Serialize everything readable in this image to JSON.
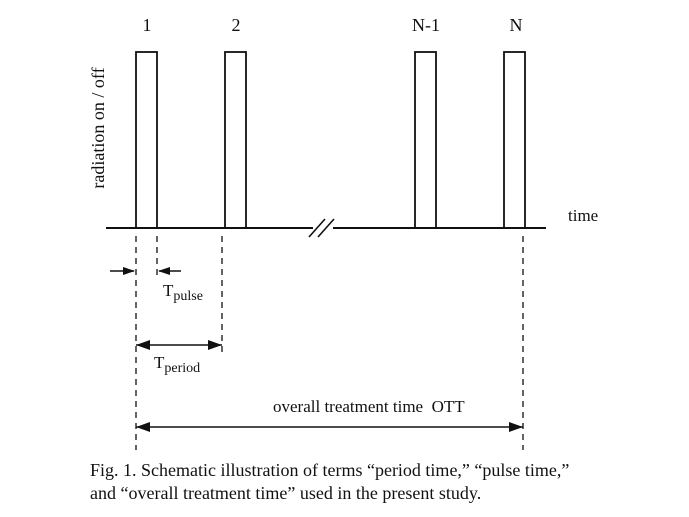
{
  "diagram": {
    "y_axis_label": "radiation on / off",
    "x_axis_label": "time",
    "pulses": [
      {
        "label": "1"
      },
      {
        "label": "2"
      },
      {
        "label": "N-1"
      },
      {
        "label": "N"
      }
    ],
    "t_pulse": {
      "symbol": "T",
      "subscript": "pulse"
    },
    "t_period": {
      "symbol": "T",
      "subscript": "period"
    },
    "ott_label": "overall treatment time  OTT"
  },
  "caption": {
    "line1": "Fig. 1. Schematic illustration of terms “period time,” “pulse time,”",
    "line2": "and “overall treatment time” used in the present study."
  }
}
